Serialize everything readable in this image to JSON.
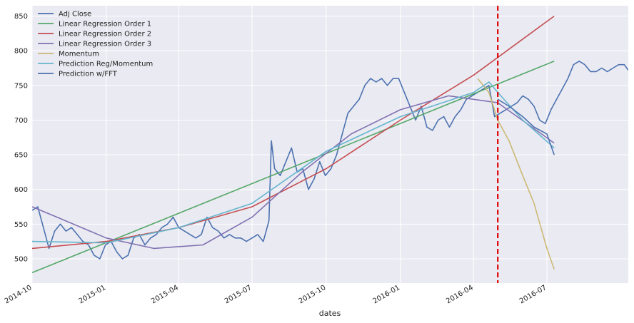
{
  "chart_data": {
    "type": "line",
    "xlabel": "dates",
    "ylabel": "",
    "ylim": [
      465,
      865
    ],
    "xlim": [
      "2014-10-01",
      "2016-10-10"
    ],
    "x_ticks": [
      "2014-10",
      "2015-01",
      "2015-04",
      "2015-07",
      "2015-10",
      "2016-01",
      "2016-04",
      "2016-07"
    ],
    "y_ticks": [
      500,
      550,
      600,
      650,
      700,
      750,
      800,
      850
    ],
    "grid": true,
    "legend_position": "top-left",
    "vertical_line": {
      "x": "2016-05-01",
      "color": "#e00000",
      "style": "dashed"
    },
    "series": [
      {
        "name": "Adj Close",
        "color": "#4c72b0",
        "points": [
          [
            "2014-10-01",
            570
          ],
          [
            "2014-10-08",
            575
          ],
          [
            "2014-10-15",
            545
          ],
          [
            "2014-10-22",
            515
          ],
          [
            "2014-10-29",
            540
          ],
          [
            "2014-11-05",
            550
          ],
          [
            "2014-11-12",
            540
          ],
          [
            "2014-11-19",
            545
          ],
          [
            "2014-11-26",
            535
          ],
          [
            "2014-12-03",
            525
          ],
          [
            "2014-12-10",
            520
          ],
          [
            "2014-12-17",
            505
          ],
          [
            "2014-12-24",
            500
          ],
          [
            "2014-12-31",
            520
          ],
          [
            "2015-01-07",
            525
          ],
          [
            "2015-01-14",
            510
          ],
          [
            "2015-01-21",
            500
          ],
          [
            "2015-01-28",
            505
          ],
          [
            "2015-02-04",
            530
          ],
          [
            "2015-02-11",
            535
          ],
          [
            "2015-02-18",
            520
          ],
          [
            "2015-02-25",
            530
          ],
          [
            "2015-03-04",
            535
          ],
          [
            "2015-03-11",
            545
          ],
          [
            "2015-03-18",
            550
          ],
          [
            "2015-03-25",
            560
          ],
          [
            "2015-04-01",
            545
          ],
          [
            "2015-04-08",
            540
          ],
          [
            "2015-04-15",
            535
          ],
          [
            "2015-04-22",
            530
          ],
          [
            "2015-04-29",
            535
          ],
          [
            "2015-05-06",
            560
          ],
          [
            "2015-05-13",
            545
          ],
          [
            "2015-05-20",
            540
          ],
          [
            "2015-05-27",
            530
          ],
          [
            "2015-06-03",
            535
          ],
          [
            "2015-06-10",
            530
          ],
          [
            "2015-06-17",
            530
          ],
          [
            "2015-06-24",
            525
          ],
          [
            "2015-07-01",
            530
          ],
          [
            "2015-07-08",
            535
          ],
          [
            "2015-07-15",
            525
          ],
          [
            "2015-07-22",
            555
          ],
          [
            "2015-07-25",
            670
          ],
          [
            "2015-07-29",
            630
          ],
          [
            "2015-08-05",
            620
          ],
          [
            "2015-08-12",
            640
          ],
          [
            "2015-08-19",
            660
          ],
          [
            "2015-08-26",
            625
          ],
          [
            "2015-09-02",
            630
          ],
          [
            "2015-09-09",
            600
          ],
          [
            "2015-09-16",
            615
          ],
          [
            "2015-09-23",
            640
          ],
          [
            "2015-09-30",
            620
          ],
          [
            "2015-10-07",
            630
          ],
          [
            "2015-10-14",
            650
          ],
          [
            "2015-10-21",
            680
          ],
          [
            "2015-10-28",
            710
          ],
          [
            "2015-11-04",
            720
          ],
          [
            "2015-11-11",
            730
          ],
          [
            "2015-11-18",
            750
          ],
          [
            "2015-11-25",
            760
          ],
          [
            "2015-12-02",
            755
          ],
          [
            "2015-12-09",
            760
          ],
          [
            "2015-12-16",
            750
          ],
          [
            "2015-12-23",
            760
          ],
          [
            "2015-12-30",
            760
          ],
          [
            "2016-01-06",
            740
          ],
          [
            "2016-01-13",
            720
          ],
          [
            "2016-01-20",
            700
          ],
          [
            "2016-01-27",
            720
          ],
          [
            "2016-02-03",
            690
          ],
          [
            "2016-02-10",
            685
          ],
          [
            "2016-02-17",
            700
          ],
          [
            "2016-02-24",
            705
          ],
          [
            "2016-03-02",
            690
          ],
          [
            "2016-03-09",
            705
          ],
          [
            "2016-03-16",
            715
          ],
          [
            "2016-03-23",
            730
          ],
          [
            "2016-03-30",
            735
          ],
          [
            "2016-04-06",
            740
          ],
          [
            "2016-04-13",
            745
          ],
          [
            "2016-04-20",
            750
          ],
          [
            "2016-04-27",
            705
          ],
          [
            "2016-05-04",
            710
          ],
          [
            "2016-05-11",
            715
          ],
          [
            "2016-05-18",
            720
          ],
          [
            "2016-05-25",
            725
          ],
          [
            "2016-06-01",
            735
          ],
          [
            "2016-06-08",
            730
          ],
          [
            "2016-06-15",
            720
          ],
          [
            "2016-06-22",
            700
          ],
          [
            "2016-06-29",
            695
          ],
          [
            "2016-07-06",
            715
          ],
          [
            "2016-07-13",
            730
          ],
          [
            "2016-07-20",
            745
          ],
          [
            "2016-07-27",
            760
          ],
          [
            "2016-08-03",
            780
          ],
          [
            "2016-08-10",
            785
          ],
          [
            "2016-08-17",
            780
          ],
          [
            "2016-08-24",
            770
          ],
          [
            "2016-08-31",
            770
          ],
          [
            "2016-09-07",
            775
          ],
          [
            "2016-09-14",
            770
          ],
          [
            "2016-09-21",
            775
          ],
          [
            "2016-09-28",
            780
          ],
          [
            "2016-10-05",
            780
          ],
          [
            "2016-10-10",
            772
          ]
        ]
      },
      {
        "name": "Linear Regression Order 1",
        "color": "#55a868",
        "points": [
          [
            "2014-10-01",
            480
          ],
          [
            "2016-07-10",
            785
          ]
        ]
      },
      {
        "name": "Linear Regression Order 2",
        "color": "#c44e52",
        "points": [
          [
            "2014-10-01",
            515
          ],
          [
            "2015-01-01",
            525
          ],
          [
            "2015-04-01",
            545
          ],
          [
            "2015-07-01",
            575
          ],
          [
            "2015-10-01",
            630
          ],
          [
            "2016-01-01",
            700
          ],
          [
            "2016-04-01",
            765
          ],
          [
            "2016-07-10",
            850
          ]
        ]
      },
      {
        "name": "Linear Regression Order 3",
        "color": "#8172b2",
        "points": [
          [
            "2014-10-01",
            575
          ],
          [
            "2014-11-01",
            560
          ],
          [
            "2015-01-01",
            530
          ],
          [
            "2015-03-01",
            515
          ],
          [
            "2015-05-01",
            520
          ],
          [
            "2015-07-01",
            560
          ],
          [
            "2015-09-01",
            625
          ],
          [
            "2015-11-01",
            680
          ],
          [
            "2016-01-01",
            715
          ],
          [
            "2016-03-01",
            735
          ],
          [
            "2016-05-01",
            725
          ],
          [
            "2016-07-10",
            667
          ]
        ]
      },
      {
        "name": "Momentum",
        "color": "#ccb974",
        "points": [
          [
            "2016-04-06",
            760
          ],
          [
            "2016-04-20",
            740
          ],
          [
            "2016-05-01",
            700
          ],
          [
            "2016-05-15",
            670
          ],
          [
            "2016-06-01",
            620
          ],
          [
            "2016-06-15",
            580
          ],
          [
            "2016-07-01",
            515
          ],
          [
            "2016-07-10",
            485
          ]
        ]
      },
      {
        "name": "Prediction Reg/Momentum",
        "color": "#64b5cd",
        "points": [
          [
            "2014-10-01",
            525
          ],
          [
            "2015-01-01",
            523
          ],
          [
            "2015-04-01",
            545
          ],
          [
            "2015-07-01",
            580
          ],
          [
            "2015-10-01",
            655
          ],
          [
            "2016-01-01",
            705
          ],
          [
            "2016-04-01",
            740
          ],
          [
            "2016-04-20",
            755
          ],
          [
            "2016-05-01",
            740
          ],
          [
            "2016-06-01",
            700
          ],
          [
            "2016-07-10",
            660
          ]
        ]
      },
      {
        "name": "Prediction w/FFT",
        "color": "#4c72b0",
        "points": [
          [
            "2016-05-01",
            730
          ],
          [
            "2016-05-15",
            720
          ],
          [
            "2016-06-01",
            705
          ],
          [
            "2016-06-15",
            690
          ],
          [
            "2016-07-01",
            680
          ],
          [
            "2016-07-10",
            650
          ]
        ]
      }
    ]
  }
}
